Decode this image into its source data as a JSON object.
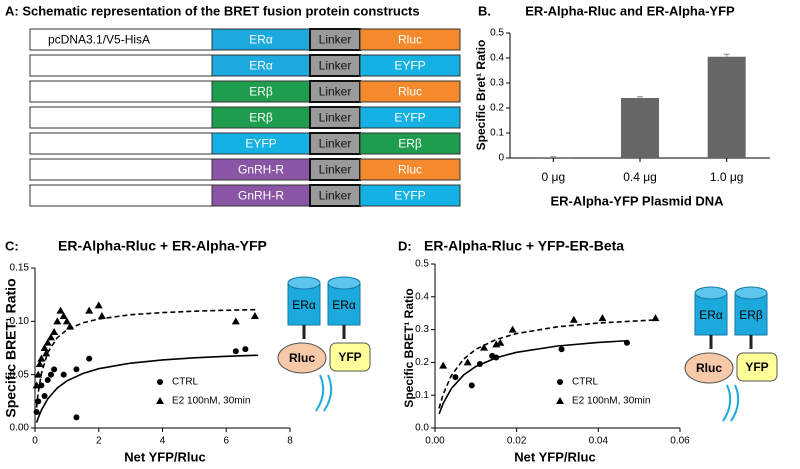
{
  "schematic": {
    "title": "A: Schematic representation of the BRET fusion protein constructs",
    "rows": [
      {
        "vector": "pcDNA3.1/V5-HisA",
        "parts": [
          {
            "label": "ERα",
            "color": "#1ca9dd"
          },
          {
            "label": "Linker",
            "color": "#9a9a9a"
          },
          {
            "label": "Rluc",
            "color": "#f58a2c"
          }
        ]
      },
      {
        "vector": null,
        "parts": [
          {
            "label": "ERα",
            "color": "#1ca9dd"
          },
          {
            "label": "Linker",
            "color": "#9a9a9a"
          },
          {
            "label": "EYFP",
            "color": "#14b2e4"
          }
        ]
      },
      {
        "vector": null,
        "parts": [
          {
            "label": "ERβ",
            "color": "#1f9d4f"
          },
          {
            "label": "Linker",
            "color": "#9a9a9a"
          },
          {
            "label": "Rluc",
            "color": "#f58a2c"
          }
        ]
      },
      {
        "vector": null,
        "parts": [
          {
            "label": "ERβ",
            "color": "#1f9d4f"
          },
          {
            "label": "Linker",
            "color": "#9a9a9a"
          },
          {
            "label": "EYFP",
            "color": "#14b2e4"
          }
        ]
      },
      {
        "vector": null,
        "parts": [
          {
            "label": "EYFP",
            "color": "#14b2e4"
          },
          {
            "label": "Linker",
            "color": "#9a9a9a"
          },
          {
            "label": "ERβ",
            "color": "#1f9d4f"
          }
        ]
      },
      {
        "vector": null,
        "parts": [
          {
            "label": "GnRH-R",
            "color": "#8b55a6"
          },
          {
            "label": "Linker",
            "color": "#9a9a9a"
          },
          {
            "label": "Rluc",
            "color": "#f58a2c"
          }
        ]
      },
      {
        "vector": null,
        "parts": [
          {
            "label": "GnRH-R",
            "color": "#8b55a6"
          },
          {
            "label": "Linker",
            "color": "#9a9a9a"
          },
          {
            "label": "EYFP",
            "color": "#14b2e4"
          }
        ]
      }
    ]
  },
  "chart_data": [
    {
      "type": "bar",
      "panel_label": "B.",
      "title": "ER-Alpha-Rluc and ER-Alpha-YFP",
      "x_label": "ER-Alpha-YFP Plasmid DNA",
      "y_label": "Specific Bret¹ Ratio",
      "categories": [
        "0 μg",
        "0.4 μg",
        "1.0 μg"
      ],
      "values": [
        0.003,
        0.24,
        0.405
      ],
      "errors": [
        0.002,
        0.005,
        0.01
      ],
      "color": "#666666",
      "ylim": [
        0,
        0.5
      ],
      "yticks": [
        0,
        0.1,
        0.2,
        0.3,
        0.4,
        0.5
      ]
    },
    {
      "type": "scatter",
      "panel_label": "C:",
      "title": "ER-Alpha-Rluc + ER-Alpha-YFP",
      "x_label": "Net YFP/Rluc",
      "y_label": "Specific BRET¹ Ratio",
      "xlim": [
        0,
        8
      ],
      "xticks": [
        0,
        2,
        4,
        6,
        8
      ],
      "ylim": [
        0,
        0.15
      ],
      "yticks": [
        {
          "value": 0,
          "label": "0.00"
        },
        {
          "value": 0.05,
          "label": "0.05"
        },
        {
          "value": 0.1,
          "label": "0.10"
        },
        {
          "value": 0.15,
          "label": "0.15"
        }
      ],
      "series": [
        {
          "name": "CTRL",
          "color": "#000000",
          "marker": "circle",
          "x": [
            0.05,
            0.1,
            0.2,
            0.3,
            0.4,
            0.5,
            0.6,
            0.9,
            1.3,
            1.3,
            1.7,
            6.3,
            6.6
          ],
          "values": [
            0.015,
            0.025,
            0.04,
            0.03,
            0.045,
            0.05,
            0.055,
            0.05,
            0.01,
            0.055,
            0.065,
            0.072,
            0.074
          ]
        },
        {
          "name": "E2 100nM, 30min",
          "color": "#000000",
          "marker": "triangle",
          "x": [
            0.05,
            0.1,
            0.15,
            0.2,
            0.3,
            0.35,
            0.4,
            0.5,
            0.6,
            0.7,
            0.8,
            0.9,
            1.0,
            1.1,
            1.7,
            2.0,
            2.1,
            6.3,
            6.9
          ],
          "values": [
            0.04,
            0.05,
            0.06,
            0.065,
            0.075,
            0.07,
            0.08,
            0.085,
            0.09,
            0.1,
            0.11,
            0.105,
            0.1,
            0.095,
            0.11,
            0.115,
            0.105,
            0.1,
            0.105
          ]
        }
      ],
      "fits": [
        {
          "style": "solid",
          "x": [
            0.05,
            0.1,
            0.2,
            0.4,
            0.7,
            1,
            1.5,
            2,
            3,
            4,
            5,
            6,
            7
          ],
          "values": [
            0.005,
            0.0094,
            0.0167,
            0.0273,
            0.0375,
            0.0441,
            0.0511,
            0.0556,
            0.0608,
            0.0638,
            0.0658,
            0.0672,
            0.0682
          ]
        },
        {
          "style": "dashed",
          "x": [
            0.05,
            0.1,
            0.2,
            0.4,
            0.7,
            1,
            1.5,
            2,
            3,
            4,
            5,
            6,
            7
          ],
          "values": [
            0.0192,
            0.0329,
            0.0511,
            0.0708,
            0.0847,
            0.092,
            0.0986,
            0.1022,
            0.1062,
            0.1082,
            0.1095,
            0.1104,
            0.111
          ]
        }
      ],
      "diagram": [
        "ERα",
        "ERα",
        "Rluc",
        "YFP"
      ]
    },
    {
      "type": "scatter",
      "panel_label": "D:",
      "title": "ER-Alpha-Rluc + YFP-ER-Beta",
      "x_label": "Net YFP/Rluc",
      "y_label": "Specific BRET¹ Ratio",
      "xlim": [
        0,
        0.06
      ],
      "xticks": [
        {
          "value": 0,
          "label": "0.00"
        },
        {
          "value": 0.02,
          "label": "0.02"
        },
        {
          "value": 0.04,
          "label": "0.04"
        },
        {
          "value": 0.06,
          "label": "0.06"
        }
      ],
      "ylim": [
        0,
        0.5
      ],
      "yticks": [
        {
          "value": 0,
          "label": "0.0"
        },
        0.1,
        0.2,
        0.3,
        0.4,
        0.5
      ],
      "series": [
        {
          "name": "CTRL",
          "color": "#000000",
          "marker": "circle",
          "x": [
            0.005,
            0.009,
            0.011,
            0.014,
            0.015,
            0.031,
            0.047
          ],
          "values": [
            0.155,
            0.13,
            0.195,
            0.22,
            0.215,
            0.24,
            0.26
          ]
        },
        {
          "name": "E2 100nM, 30min",
          "color": "#000000",
          "marker": "triangle",
          "x": [
            0.002,
            0.008,
            0.012,
            0.015,
            0.016,
            0.019,
            0.034,
            0.041,
            0.054
          ],
          "values": [
            0.19,
            0.2,
            0.245,
            0.255,
            0.26,
            0.3,
            0.33,
            0.335,
            0.335
          ]
        }
      ],
      "fits": [
        {
          "style": "solid",
          "x": [
            0.001,
            0.002,
            0.004,
            0.007,
            0.01,
            0.015,
            0.02,
            0.03,
            0.04,
            0.047
          ],
          "values": [
            0.0429,
            0.075,
            0.12,
            0.1615,
            0.1875,
            0.2143,
            0.2308,
            0.25,
            0.2609,
            0.266
          ]
        },
        {
          "style": "dashed",
          "x": [
            0.001,
            0.002,
            0.004,
            0.007,
            0.01,
            0.015,
            0.02,
            0.03,
            0.04,
            0.054
          ],
          "values": [
            0.06,
            0.1029,
            0.16,
            0.21,
            0.24,
            0.27,
            0.288,
            0.3086,
            0.32,
            0.3295
          ]
        }
      ],
      "diagram": [
        "ERα",
        "ERβ",
        "Rluc",
        "YFP"
      ]
    }
  ]
}
